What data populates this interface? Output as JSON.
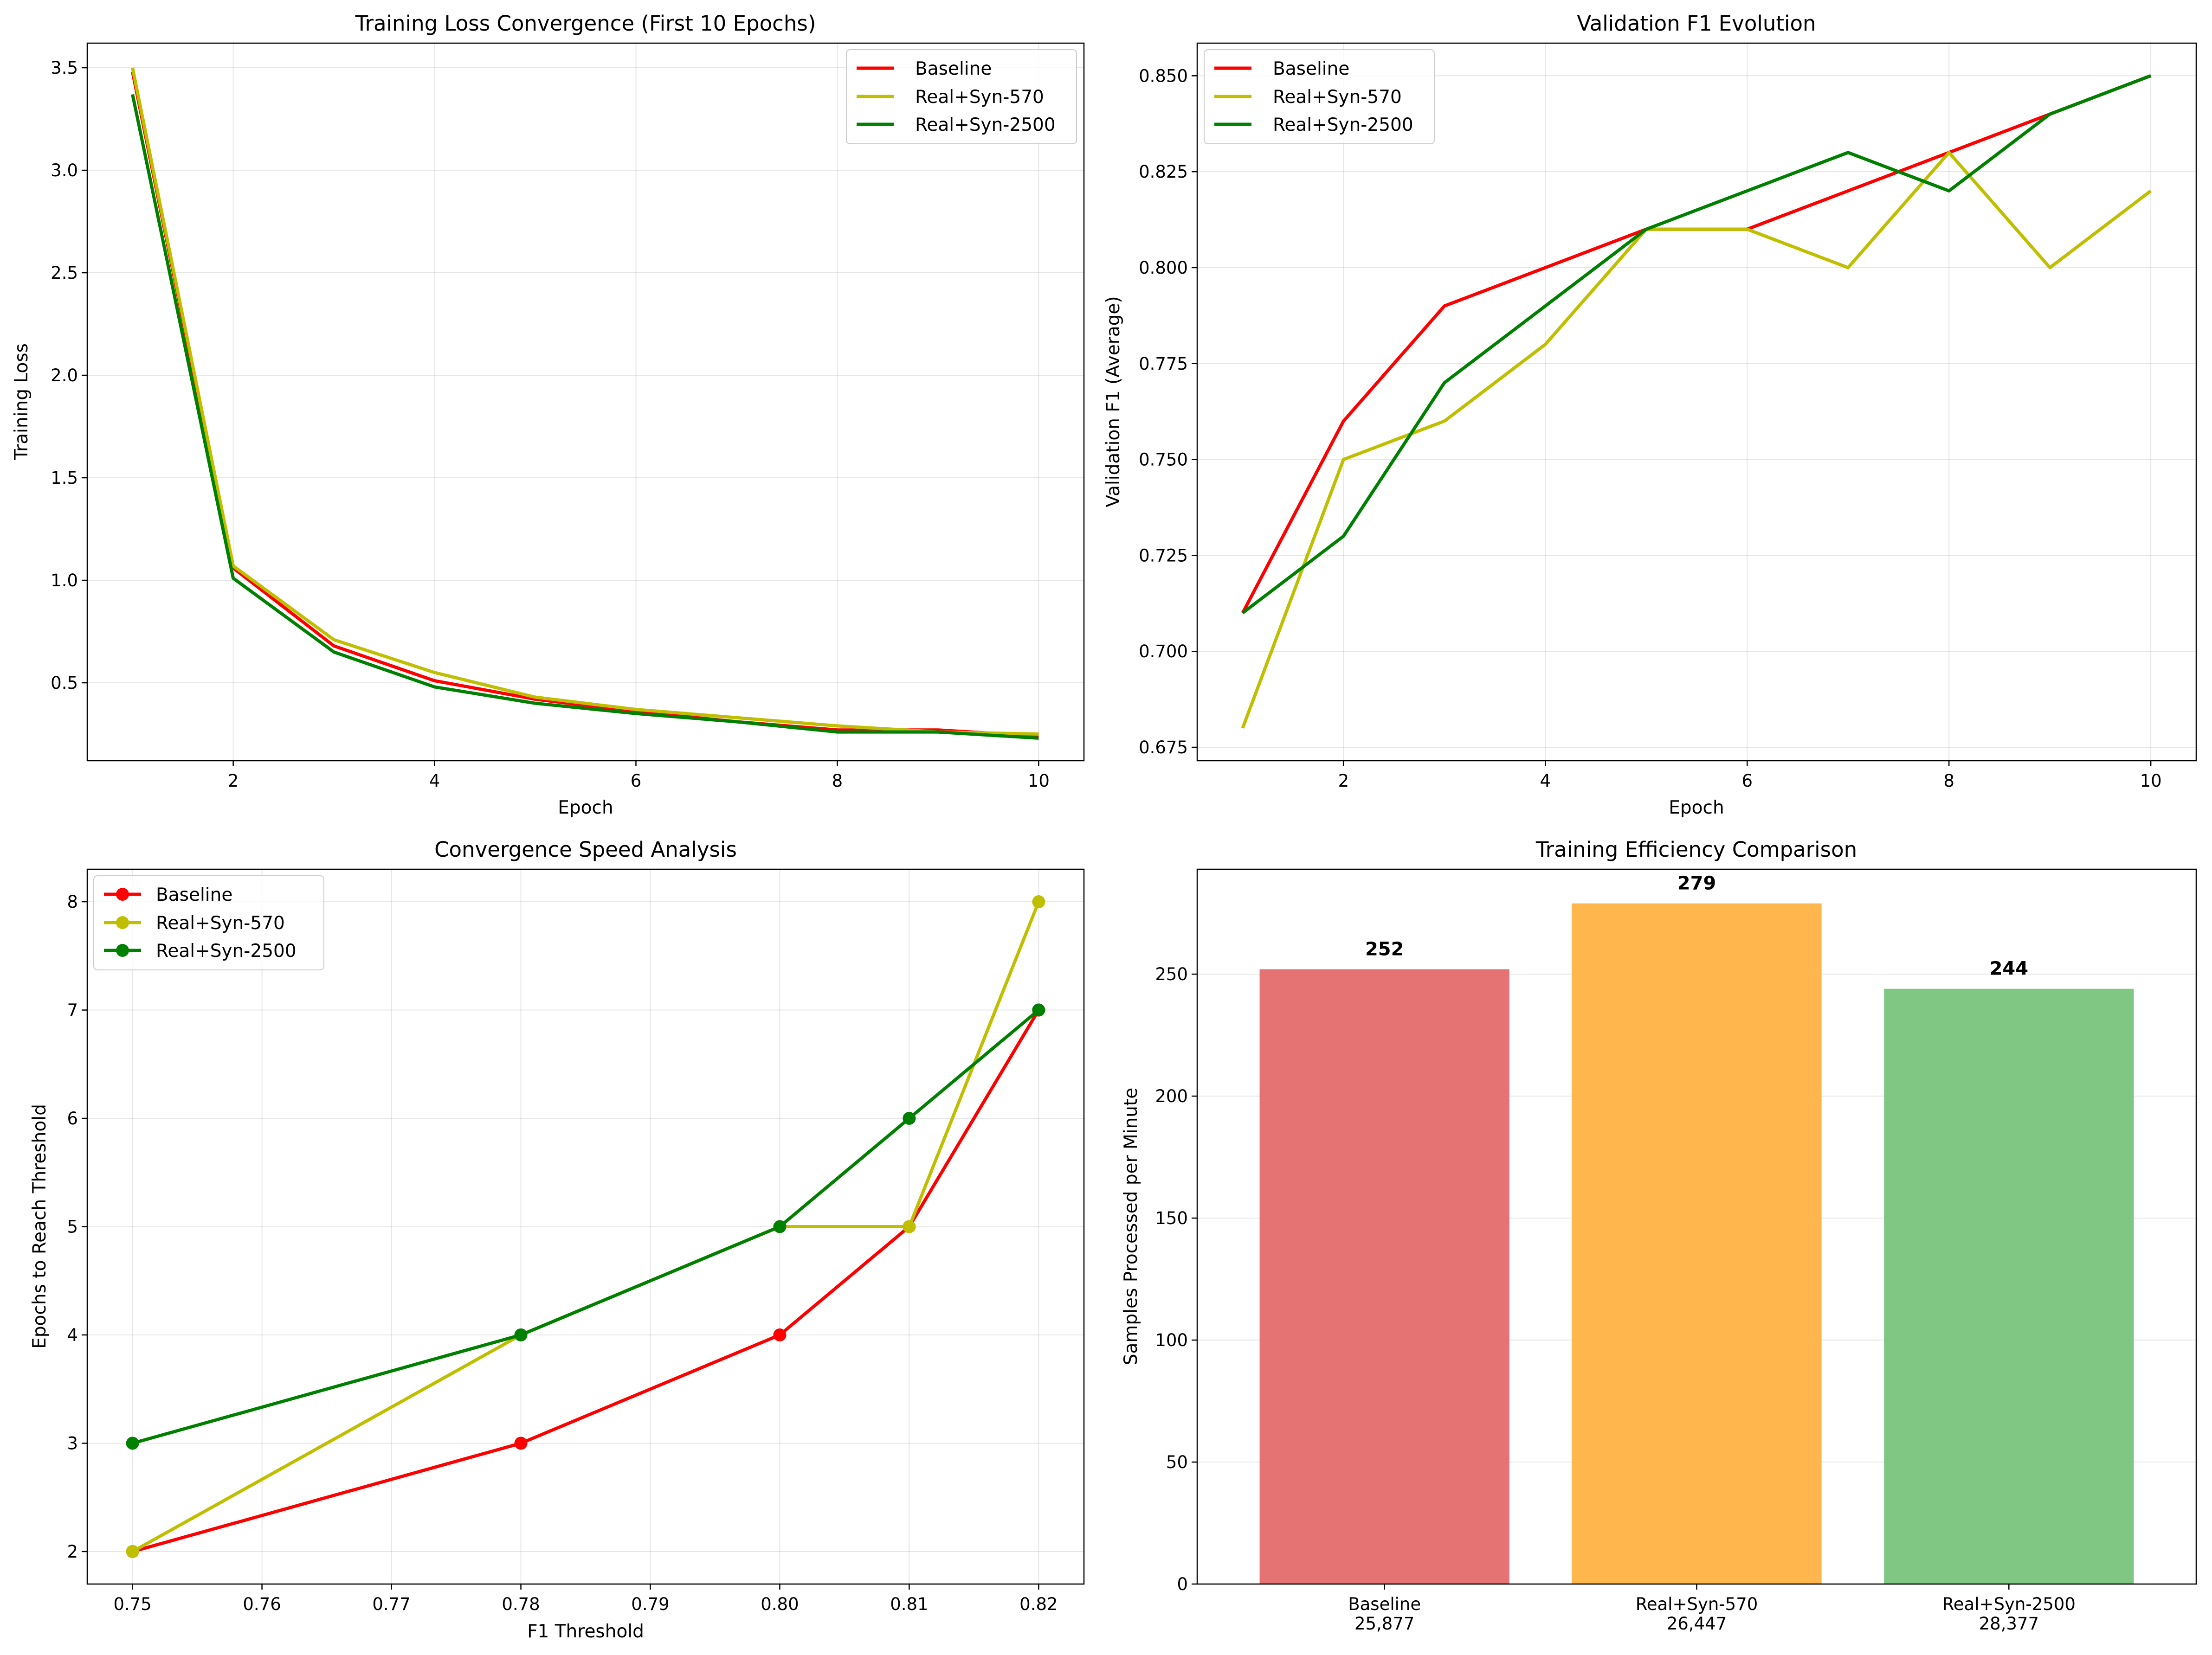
{
  "chart_data": [
    {
      "type": "line",
      "title": "Training Loss Convergence (First 10 Epochs)",
      "xlabel": "Epoch",
      "ylabel": "Training Loss",
      "xlim": [
        0.55,
        10.45
      ],
      "ylim": [
        0.12,
        3.62
      ],
      "xticks": [
        2,
        4,
        6,
        8,
        10
      ],
      "yticks": [
        0.5,
        1.0,
        1.5,
        2.0,
        2.5,
        3.0,
        3.5
      ],
      "ytick_decimals": 1,
      "grid": true,
      "markers": false,
      "legend_position": "top-right",
      "x": [
        1,
        2,
        3,
        4,
        5,
        6,
        7,
        8,
        9,
        10
      ],
      "series": [
        {
          "name": "Baseline",
          "color": "#ff0000",
          "values": [
            3.48,
            1.06,
            0.68,
            0.51,
            0.42,
            0.36,
            0.31,
            0.27,
            0.27,
            0.24
          ]
        },
        {
          "name": "Real+Syn-570",
          "color": "#bfbf00",
          "values": [
            3.5,
            1.07,
            0.71,
            0.55,
            0.43,
            0.37,
            0.33,
            0.29,
            0.26,
            0.25
          ]
        },
        {
          "name": "Real+Syn-2500",
          "color": "#008000",
          "values": [
            3.37,
            1.01,
            0.65,
            0.48,
            0.4,
            0.35,
            0.31,
            0.26,
            0.26,
            0.23
          ]
        }
      ]
    },
    {
      "type": "line",
      "title": "Validation F1 Evolution",
      "xlabel": "Epoch",
      "ylabel": "Validation F1 (Average)",
      "xlim": [
        0.55,
        10.45
      ],
      "ylim": [
        0.6715,
        0.8585
      ],
      "xticks": [
        2,
        4,
        6,
        8,
        10
      ],
      "yticks": [
        0.675,
        0.7,
        0.725,
        0.75,
        0.775,
        0.8,
        0.825,
        0.85
      ],
      "ytick_decimals": 3,
      "grid": true,
      "markers": false,
      "legend_position": "top-left",
      "x": [
        1,
        2,
        3,
        4,
        5,
        6,
        7,
        8,
        9,
        10
      ],
      "series": [
        {
          "name": "Baseline",
          "color": "#ff0000",
          "values": [
            0.71,
            0.76,
            0.79,
            0.8,
            0.81,
            0.81,
            0.82,
            0.83,
            0.84,
            0.85
          ]
        },
        {
          "name": "Real+Syn-570",
          "color": "#bfbf00",
          "values": [
            0.68,
            0.75,
            0.76,
            0.78,
            0.81,
            0.81,
            0.8,
            0.83,
            0.8,
            0.82
          ]
        },
        {
          "name": "Real+Syn-2500",
          "color": "#008000",
          "values": [
            0.71,
            0.73,
            0.77,
            0.79,
            0.81,
            0.82,
            0.83,
            0.82,
            0.84,
            0.85
          ]
        }
      ]
    },
    {
      "type": "line",
      "title": "Convergence Speed Analysis",
      "xlabel": "F1 Threshold",
      "ylabel": "Epochs to Reach Threshold",
      "xlim": [
        0.7465,
        0.8235
      ],
      "ylim": [
        1.7,
        8.3
      ],
      "xticks": [
        0.75,
        0.76,
        0.77,
        0.78,
        0.79,
        0.8,
        0.81,
        0.82
      ],
      "xtick_decimals": 2,
      "yticks": [
        2,
        3,
        4,
        5,
        6,
        7,
        8
      ],
      "ytick_decimals": 0,
      "grid": true,
      "markers": true,
      "legend_position": "top-left",
      "x": [
        0.75,
        0.78,
        0.8,
        0.81,
        0.82
      ],
      "series": [
        {
          "name": "Baseline",
          "color": "#ff0000",
          "values": [
            2,
            3,
            4,
            5,
            7
          ]
        },
        {
          "name": "Real+Syn-570",
          "color": "#bfbf00",
          "values": [
            2,
            4,
            5,
            5,
            8
          ]
        },
        {
          "name": "Real+Syn-2500",
          "color": "#008000",
          "values": [
            3,
            4,
            5,
            6,
            7
          ]
        }
      ]
    },
    {
      "type": "bar",
      "title": "Training Efficiency Comparison",
      "xlabel": "",
      "ylabel": "Samples Processed per Minute",
      "ylim": [
        0,
        293
      ],
      "yticks": [
        0,
        50,
        100,
        150,
        200,
        250
      ],
      "ytick_decimals": 0,
      "grid": true,
      "categories": [
        "Baseline",
        "Real+Syn-570",
        "Real+Syn-2500"
      ],
      "category_sublabels": [
        "25,877",
        "26,447",
        "28,377"
      ],
      "values": [
        252,
        279,
        244
      ],
      "value_labels": [
        "252",
        "279",
        "244"
      ],
      "colors": [
        "#e57373",
        "#ffb74d",
        "#81c784"
      ]
    }
  ]
}
